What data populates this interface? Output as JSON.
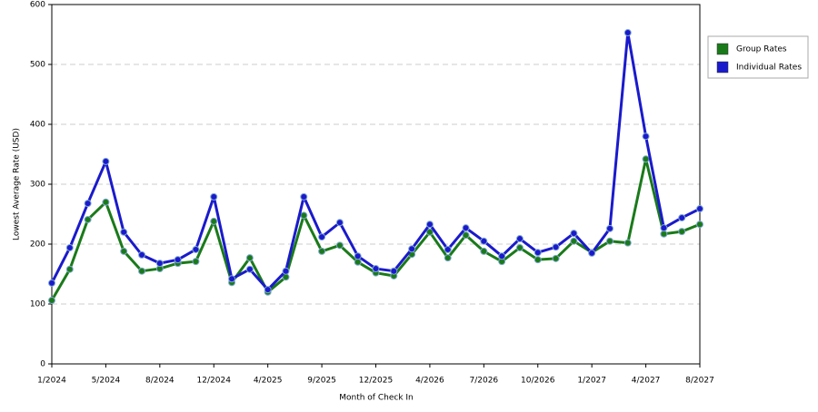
{
  "chart_data": {
    "type": "line",
    "x_label": "Month of Check In",
    "y_label": "Lowest Average Rate (USD)",
    "categories": [
      "1/2024",
      null,
      null,
      "5/2024",
      null,
      null,
      "8/2024",
      null,
      null,
      "12/2024",
      null,
      null,
      "4/2025",
      null,
      null,
      "9/2025",
      null,
      null,
      "12/2025",
      null,
      null,
      "4/2026",
      null,
      null,
      "7/2026",
      null,
      null,
      "10/2026",
      null,
      null,
      "1/2027",
      null,
      null,
      "4/2027",
      null,
      null,
      "8/2027"
    ],
    "series": [
      {
        "name": "Group Rates",
        "color": "#1a7a1a",
        "values": [
          106,
          158,
          241,
          270,
          188,
          155,
          159,
          168,
          171,
          238,
          136,
          177,
          120,
          145,
          248,
          188,
          198,
          170,
          152,
          147,
          183,
          220,
          177,
          215,
          188,
          171,
          194,
          174,
          176,
          205,
          186,
          205,
          202,
          342,
          217,
          221,
          233
        ]
      },
      {
        "name": "Individual Rates",
        "color": "#1a1acc",
        "values": [
          135,
          194,
          268,
          338,
          220,
          182,
          168,
          174,
          191,
          279,
          142,
          158,
          124,
          155,
          279,
          212,
          236,
          180,
          159,
          155,
          192,
          233,
          191,
          227,
          205,
          180,
          209,
          186,
          195,
          218,
          185,
          226,
          553,
          380,
          227,
          244,
          259
        ]
      }
    ],
    "ylim": [
      0,
      600
    ],
    "yticks": [
      0,
      100,
      200,
      300,
      400,
      500,
      600
    ],
    "grid": true,
    "legend": "right"
  }
}
